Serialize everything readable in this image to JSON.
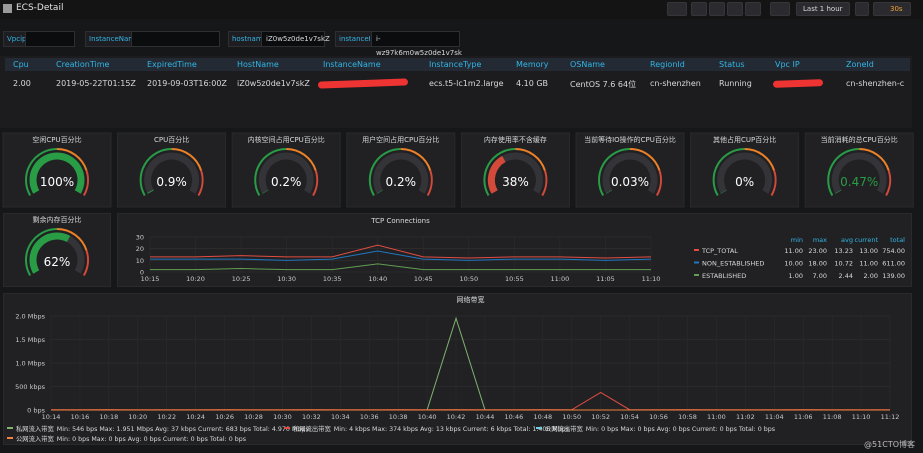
{
  "header": {
    "title": "ECS-Detail",
    "time_range": "Last 1 hour",
    "refresh": "30s"
  },
  "variables": [
    {
      "label": "Vpcip"
    },
    {
      "label": "InstanceName"
    },
    {
      "label": "hostname",
      "value": "iZ0w5z0de1v7skZ"
    },
    {
      "label": "instanceId",
      "value": "i-wz97k6m0w5z0de1v7sk"
    }
  ],
  "table": {
    "columns": [
      "Cpu",
      "CreationTime",
      "ExpiredTime",
      "HostName",
      "InstanceName",
      "InstanceType",
      "Memory",
      "OSName",
      "RegionId",
      "Status",
      "Vpc IP",
      "ZoneId"
    ],
    "rows": [
      [
        "2.00",
        "2019-05-22T01:15Z",
        "2019-09-03T16:00Z",
        "iZ0w5z0de1v7skZ",
        null,
        "ecs.t5-lc1m2.large",
        "4.10 GB",
        "CentOS 7.6 64位",
        "cn-shenzhen",
        "Running",
        null,
        "cn-shenzhen-c"
      ]
    ]
  },
  "gauges": [
    {
      "title": "空闲CPU百分比",
      "value": 100,
      "value_label": "100%",
      "color": "#299c46",
      "text_color": "#ffffff"
    },
    {
      "title": "CPU百分比",
      "value": 0.9,
      "value_label": "0.9%",
      "color": "#299c46",
      "text_color": "#ffffff"
    },
    {
      "title": "内核空间占用CPU百分比",
      "value": 0.2,
      "value_label": "0.2%",
      "color": "#299c46",
      "text_color": "#ffffff"
    },
    {
      "title": "用户空间占用CPU百分比",
      "value": 0.2,
      "value_label": "0.2%",
      "color": "#299c46",
      "text_color": "#ffffff"
    },
    {
      "title": "内存使用率不含缓存",
      "value": 38,
      "value_label": "38%",
      "color": "#d44a3a",
      "text_color": "#ffffff"
    },
    {
      "title": "当前等待IO操作的CPU百分比",
      "value": 0.03,
      "value_label": "0.03%",
      "color": "#299c46",
      "text_color": "#ffffff"
    },
    {
      "title": "其他占用CUP百分比",
      "value": 0,
      "value_label": "0%",
      "color": "#299c46",
      "text_color": "#ffffff"
    },
    {
      "title": "当前消耗的总CPU百分比",
      "value": 0.47,
      "value_label": "0.47%",
      "color": "#299c46",
      "text_color": "#299c46"
    },
    {
      "title": "剩余内存百分比",
      "value": 62,
      "value_label": "62%",
      "color": "#299c46",
      "text_color": "#ffffff"
    }
  ],
  "tcp_chart": {
    "title": "TCP Connections",
    "x": [
      "10:15",
      "10:20",
      "10:25",
      "10:30",
      "10:35",
      "10:40",
      "10:45",
      "10:50",
      "10:55",
      "11:00",
      "11:05",
      "11:10"
    ],
    "ylim": [
      0,
      30
    ],
    "yticks": [
      0,
      10,
      20,
      30
    ],
    "legend_columns": [
      "min",
      "max",
      "avg",
      "current",
      "total"
    ],
    "series": [
      {
        "name": "TCP_TOTAL",
        "color": "#e24d42",
        "values": [
          13,
          13,
          14,
          13,
          13,
          23,
          13,
          12,
          13,
          13,
          12,
          13
        ],
        "stats": [
          "11.00",
          "23.00",
          "13.23",
          "13.00",
          "754.00"
        ]
      },
      {
        "name": "NON_ESTABLISHED",
        "color": "#1f78c1",
        "values": [
          11,
          11,
          11,
          10,
          11,
          18,
          11,
          10,
          11,
          11,
          10,
          11
        ],
        "stats": [
          "10.00",
          "18.00",
          "10.72",
          "11.00",
          "611.00"
        ]
      },
      {
        "name": "ESTABLISHED",
        "color": "#629e51",
        "values": [
          2,
          2,
          3,
          2,
          2,
          7,
          2,
          2,
          2,
          2,
          2,
          2
        ],
        "stats": [
          "1.00",
          "7.00",
          "2.44",
          "2.00",
          "139.00"
        ]
      }
    ]
  },
  "network_chart": {
    "title": "网络带宽",
    "x": [
      "10:14",
      "10:16",
      "10:18",
      "10:20",
      "10:22",
      "10:24",
      "10:26",
      "10:28",
      "10:30",
      "10:32",
      "10:34",
      "10:36",
      "10:38",
      "10:40",
      "10:42",
      "10:44",
      "10:46",
      "10:48",
      "10:50",
      "10:52",
      "10:54",
      "10:56",
      "10:58",
      "11:00",
      "11:02",
      "11:04",
      "11:06",
      "11:08",
      "11:10",
      "11:12"
    ],
    "ylim": [
      0,
      2000000
    ],
    "yticks": [
      {
        "value": 0,
        "label": "0 bps"
      },
      {
        "value": 500000,
        "label": "500 kbps"
      },
      {
        "value": 1000000,
        "label": "1.0 Mbps"
      },
      {
        "value": 1500000,
        "label": "1.5 Mbps"
      },
      {
        "value": 2000000,
        "label": "2.0 Mbps"
      }
    ],
    "series": [
      {
        "name": "私网流入带宽",
        "color": "#7eb26d",
        "legend": "Min: 546 bps Max: 1.951 Mbps Avg: 37 kbps Current: 683 bps Total: 4.970 Mbps",
        "values": [
          900,
          700,
          1200,
          800,
          600,
          900,
          700,
          1000,
          800,
          700,
          900,
          600,
          800,
          1000,
          1951000,
          900,
          700,
          800,
          600,
          900,
          700,
          800,
          1000,
          700,
          600,
          800,
          900,
          700,
          800,
          683
        ]
      },
      {
        "name": "私网流出带宽",
        "color": "#e24d42",
        "legend": "Min: 4 kbps Max: 374 kbps Avg: 13 kbps Current: 6 kbps Total: 1.406 Mbps",
        "values": [
          6000,
          5000,
          7000,
          6000,
          5000,
          6000,
          8000,
          5000,
          6000,
          7000,
          5000,
          6000,
          7000,
          6000,
          9000,
          5000,
          6000,
          7000,
          5000,
          374000,
          6000,
          5000,
          7000,
          6000,
          5000,
          6000,
          7000,
          5000,
          6000,
          6000
        ]
      },
      {
        "name": "公网流出带宽",
        "color": "#6ed0e0",
        "legend": "Min: 0 bps Max: 0 bps Avg: 0 bps Current: 0 bps Total: 0 bps",
        "values": [
          0,
          0,
          0,
          0,
          0,
          0,
          0,
          0,
          0,
          0,
          0,
          0,
          0,
          0,
          0,
          0,
          0,
          0,
          0,
          0,
          0,
          0,
          0,
          0,
          0,
          0,
          0,
          0,
          0,
          0
        ]
      },
      {
        "name": "公网流入带宽",
        "color": "#ef843c",
        "legend": "Min: 0 bps Max: 0 bps Avg: 0 bps Current: 0 bps Total: 0 bps",
        "values": [
          0,
          0,
          0,
          0,
          0,
          0,
          0,
          0,
          0,
          0,
          0,
          0,
          0,
          0,
          0,
          0,
          0,
          0,
          0,
          0,
          0,
          0,
          0,
          0,
          0,
          0,
          0,
          0,
          0,
          0
        ]
      }
    ]
  },
  "watermark": "@51CTO博客"
}
